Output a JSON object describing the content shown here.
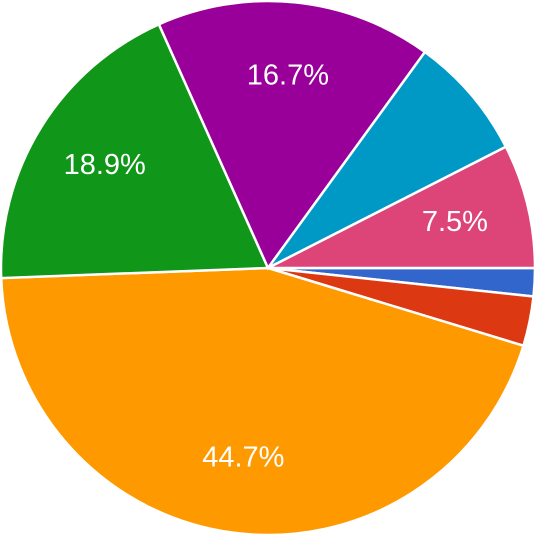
{
  "chart_data": {
    "type": "pie",
    "values": [
      1.7,
      3.0,
      44.7,
      18.9,
      16.7,
      7.5,
      7.5
    ],
    "value_labels": [
      null,
      null,
      "44.7%",
      "18.9%",
      "16.7%",
      null,
      "7.5%"
    ],
    "colors": [
      "#3366cc",
      "#dc3912",
      "#ff9900",
      "#109618",
      "#990099",
      "#0099c6",
      "#dd4477"
    ]
  }
}
